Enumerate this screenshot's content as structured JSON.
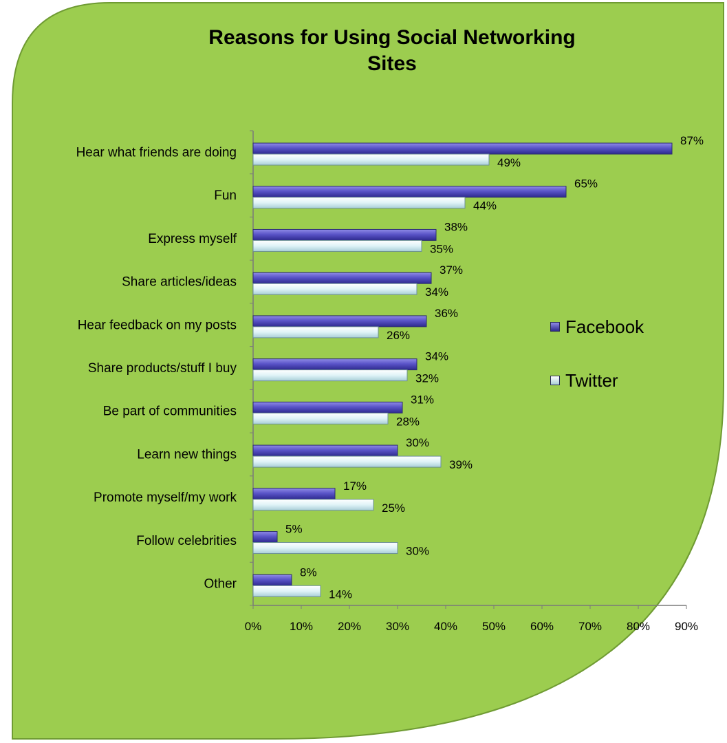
{
  "chart_data": {
    "type": "bar",
    "orientation": "horizontal",
    "title": "Reasons for Using Social Networking Sites",
    "categories": [
      "Hear what friends are doing",
      "Fun",
      "Express myself",
      "Share articles/ideas",
      "Hear feedback on my posts",
      "Share products/stuff I buy",
      "Be part of communities",
      "Learn new things",
      "Promote myself/my work",
      "Follow celebrities",
      "Other"
    ],
    "series": [
      {
        "name": "Facebook",
        "color": "#5a54c8",
        "values": [
          87,
          65,
          38,
          37,
          36,
          34,
          31,
          30,
          17,
          5,
          8
        ],
        "labels": [
          "87%",
          "65%",
          "38%",
          "37%",
          "36%",
          "34%",
          "31%",
          "30%",
          "17%",
          "5%",
          "8%"
        ]
      },
      {
        "name": "Twitter",
        "color": "#dff3f7",
        "values": [
          49,
          44,
          35,
          34,
          26,
          32,
          28,
          39,
          25,
          30,
          14
        ],
        "labels": [
          "49%",
          "44%",
          "35%",
          "34%",
          "26%",
          "32%",
          "28%",
          "39%",
          "25%",
          "30%",
          "14%"
        ]
      }
    ],
    "xlim": [
      0,
      90
    ],
    "xticks": [
      "0%",
      "10%",
      "20%",
      "30%",
      "40%",
      "50%",
      "60%",
      "70%",
      "80%",
      "90%"
    ],
    "xlabel": "",
    "ylabel": "",
    "grid": false,
    "legend_position": "right",
    "background_color": "#9ccd4f"
  }
}
